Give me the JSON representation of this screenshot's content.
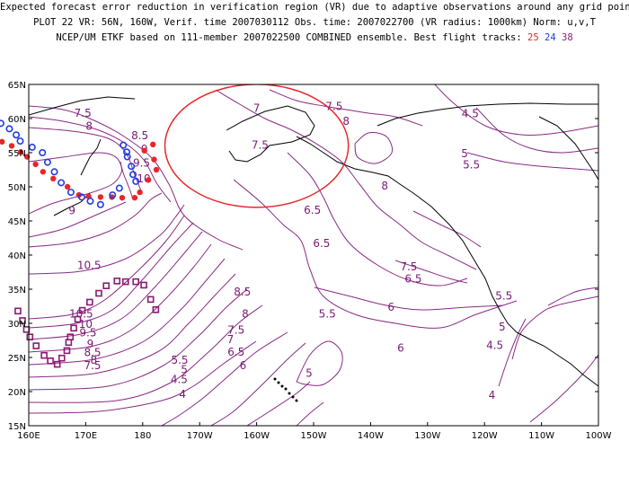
{
  "header": {
    "line1": "Expected forecast error reduction in verification region (VR) due to adaptive observations around any grid point.",
    "line2": "PLOT 22 VR: 56N, 160W, Verif. time 2007030112 Obs. time: 2007022700 (VR radius: 1000km) Norm: u,v,T",
    "line3_prefix": "NCEP/UM ETKF based on 111-member 2007022500 COMBINED ensemble.  Best flight tracks:",
    "track_red": "25",
    "track_blue": "24",
    "track_purple": "38"
  },
  "axes": {
    "x_ticks": [
      "160E",
      "170E",
      "180",
      "170W",
      "160W",
      "150W",
      "140W",
      "130W",
      "120W",
      "110W",
      "100W"
    ],
    "y_ticks": [
      "15N",
      "20N",
      "25N",
      "30N",
      "35N",
      "40N",
      "45N",
      "50N",
      "55N",
      "60N",
      "65N"
    ]
  },
  "contour_labels": [
    {
      "text": "7.5",
      "lon": 169.5,
      "lat": 60.8
    },
    {
      "text": "8",
      "lon": 170.6,
      "lat": 58.9
    },
    {
      "text": "8.5",
      "lon": 179.5,
      "lat": 57.5
    },
    {
      "text": "9",
      "lon": 180.3,
      "lat": 55.5
    },
    {
      "text": "9.5",
      "lon": 179.8,
      "lat": 53.5
    },
    {
      "text": "10",
      "lon": 180.2,
      "lat": 51.2
    },
    {
      "text": "9",
      "lon": 167.6,
      "lat": 46.5
    },
    {
      "text": "10.5",
      "lon": 170.6,
      "lat": 38.5
    },
    {
      "text": "10.5",
      "lon": 169.2,
      "lat": 31.4
    },
    {
      "text": "10",
      "lon": 170.0,
      "lat": 29.9
    },
    {
      "text": "9.5",
      "lon": 170.4,
      "lat": 28.6
    },
    {
      "text": "9",
      "lon": 170.8,
      "lat": 27.0
    },
    {
      "text": "8.5",
      "lon": 171.2,
      "lat": 25.7
    },
    {
      "text": "8",
      "lon": 171.4,
      "lat": 24.6
    },
    {
      "text": "7.5",
      "lon": 171.2,
      "lat": 23.8
    },
    {
      "text": "8.5",
      "lon": 197.5,
      "lat": 34.6
    },
    {
      "text": "8",
      "lon": 198.0,
      "lat": 31.4
    },
    {
      "text": "7.5",
      "lon": 196.4,
      "lat": 29.0
    },
    {
      "text": "7",
      "lon": 195.4,
      "lat": 27.6
    },
    {
      "text": "6.5",
      "lon": 196.4,
      "lat": 25.8
    },
    {
      "text": "6",
      "lon": 197.6,
      "lat": 23.8
    },
    {
      "text": "5.5",
      "lon": 186.5,
      "lat": 24.6
    },
    {
      "text": "5",
      "lon": 187.3,
      "lat": 23.2
    },
    {
      "text": "4.5",
      "lon": 186.4,
      "lat": 21.8
    },
    {
      "text": "4",
      "lon": 187.0,
      "lat": 19.6
    },
    {
      "text": "7",
      "lon": 200.0,
      "lat": 61.5
    },
    {
      "text": "7.5",
      "lon": 213.6,
      "lat": 61.8
    },
    {
      "text": "8",
      "lon": 215.7,
      "lat": 59.6
    },
    {
      "text": "7.5",
      "lon": 200.6,
      "lat": 56.1
    },
    {
      "text": "8",
      "lon": 222.5,
      "lat": 50.1
    },
    {
      "text": "6.5",
      "lon": 209.8,
      "lat": 46.6
    },
    {
      "text": "6.5",
      "lon": 211.4,
      "lat": 41.7
    },
    {
      "text": "7.5",
      "lon": 226.7,
      "lat": 38.3
    },
    {
      "text": "6.5",
      "lon": 227.5,
      "lat": 36.5
    },
    {
      "text": "5.5",
      "lon": 212.4,
      "lat": 31.4
    },
    {
      "text": "6",
      "lon": 223.6,
      "lat": 32.4
    },
    {
      "text": "6",
      "lon": 225.3,
      "lat": 26.4
    },
    {
      "text": "5",
      "lon": 209.2,
      "lat": 22.7
    },
    {
      "text": "4.5",
      "lon": 237.5,
      "lat": 60.7
    },
    {
      "text": "5",
      "lon": 236.5,
      "lat": 54.9
    },
    {
      "text": "5.5",
      "lon": 237.7,
      "lat": 53.2
    },
    {
      "text": "5.5",
      "lon": 243.4,
      "lat": 34.0
    },
    {
      "text": "5",
      "lon": 243.1,
      "lat": 29.5
    },
    {
      "text": "4.5",
      "lon": 241.8,
      "lat": 26.8
    },
    {
      "text": "4",
      "lon": 241.3,
      "lat": 19.5
    }
  ],
  "verification_region": {
    "center_lon": 200,
    "center_lat": 56,
    "radius_km": 1000,
    "color": "#e8262a"
  },
  "tracks": [
    {
      "name": "25",
      "color": "#e8262a",
      "marker": "dot",
      "points": [
        [
          181.8,
          56.2
        ],
        [
          180.3,
          55.3
        ],
        [
          182.0,
          54.0
        ],
        [
          182.4,
          52.5
        ],
        [
          181.0,
          51.0
        ],
        [
          179.5,
          49.2
        ],
        [
          178.6,
          48.4
        ],
        [
          176.4,
          48.4
        ],
        [
          174.6,
          48.5
        ],
        [
          172.6,
          48.5
        ],
        [
          170.5,
          48.6
        ],
        [
          168.8,
          48.8
        ],
        [
          166.8,
          50.0
        ],
        [
          164.3,
          51.2
        ],
        [
          162.5,
          52.2
        ],
        [
          161.2,
          53.3
        ],
        [
          159.7,
          54.4
        ],
        [
          158.6,
          55.1
        ],
        [
          157.0,
          56.0
        ],
        [
          155.3,
          56.6
        ],
        [
          152.7,
          57.1
        ],
        [
          150.8,
          57.5
        ],
        [
          148.9,
          57.8
        ],
        [
          147.3,
          58.3
        ]
      ]
    },
    {
      "name": "24",
      "color": "#1f3de0",
      "marker": "circle",
      "points": [
        [
          176.6,
          56.1
        ],
        [
          177.2,
          55.1
        ],
        [
          177.3,
          54.4
        ],
        [
          178.0,
          53.0
        ],
        [
          178.3,
          51.8
        ],
        [
          178.8,
          50.8
        ],
        [
          175.9,
          49.8
        ],
        [
          174.7,
          48.8
        ],
        [
          172.6,
          47.4
        ],
        [
          170.8,
          47.9
        ],
        [
          169.3,
          48.5
        ],
        [
          167.4,
          49.2
        ],
        [
          165.7,
          50.6
        ],
        [
          164.5,
          52.2
        ],
        [
          163.3,
          53.6
        ],
        [
          162.4,
          55.0
        ],
        [
          160.6,
          55.8
        ],
        [
          158.5,
          56.7
        ],
        [
          157.8,
          57.6
        ],
        [
          156.6,
          58.5
        ],
        [
          155.1,
          59.3
        ],
        [
          154.0,
          59.4
        ]
      ]
    },
    {
      "name": "38",
      "color": "#8b1a74",
      "marker": "square",
      "points": [
        [
          182.3,
          32.0
        ],
        [
          181.4,
          33.5
        ],
        [
          180.2,
          35.6
        ],
        [
          178.8,
          36.1
        ],
        [
          177.0,
          36.1
        ],
        [
          175.5,
          36.2
        ],
        [
          173.6,
          35.5
        ],
        [
          172.3,
          34.4
        ],
        [
          170.7,
          33.1
        ],
        [
          169.4,
          31.9
        ],
        [
          168.6,
          30.6
        ],
        [
          167.9,
          29.3
        ],
        [
          167.3,
          28.0
        ],
        [
          167.0,
          27.2
        ],
        [
          166.7,
          26.0
        ],
        [
          165.8,
          24.9
        ],
        [
          165.0,
          24.0
        ],
        [
          163.8,
          24.5
        ],
        [
          162.7,
          25.3
        ],
        [
          161.3,
          26.7
        ],
        [
          160.2,
          28.0
        ],
        [
          159.6,
          29.1
        ],
        [
          158.9,
          30.4
        ],
        [
          158.1,
          31.8
        ]
      ]
    }
  ]
}
